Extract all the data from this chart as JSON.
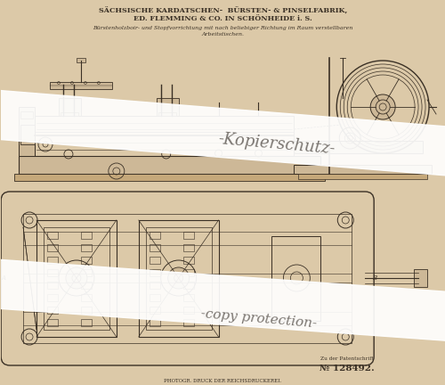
{
  "bg_color": "#dcc9a8",
  "title_line1": "SÄCHSISCHE KARDATSCHEN-  BÜRSTEN- & PINSELFABRIK,",
  "title_line2": "ED. FLEMMING & CO. IN SCHÖNHEIDE i. S.",
  "subtitle": "Bürstenholzboir- und Stopfvorrichtung mit nach beliebiger Richtung im Raum verstellbaren",
  "subtitle2": "Arbeitstischen.",
  "watermark1": "-Kopierschutz-",
  "watermark2": "-copy protection-",
  "patent_ref": "Zu der Patentschrift",
  "patent_num": "№ 128492.",
  "footer": "PHOTOGR. DRUCK DER REICHSDRUCKEREI.",
  "line_color": "#3a3025",
  "light_fill": "#cdb897",
  "mid_fill": "#c5a87a"
}
